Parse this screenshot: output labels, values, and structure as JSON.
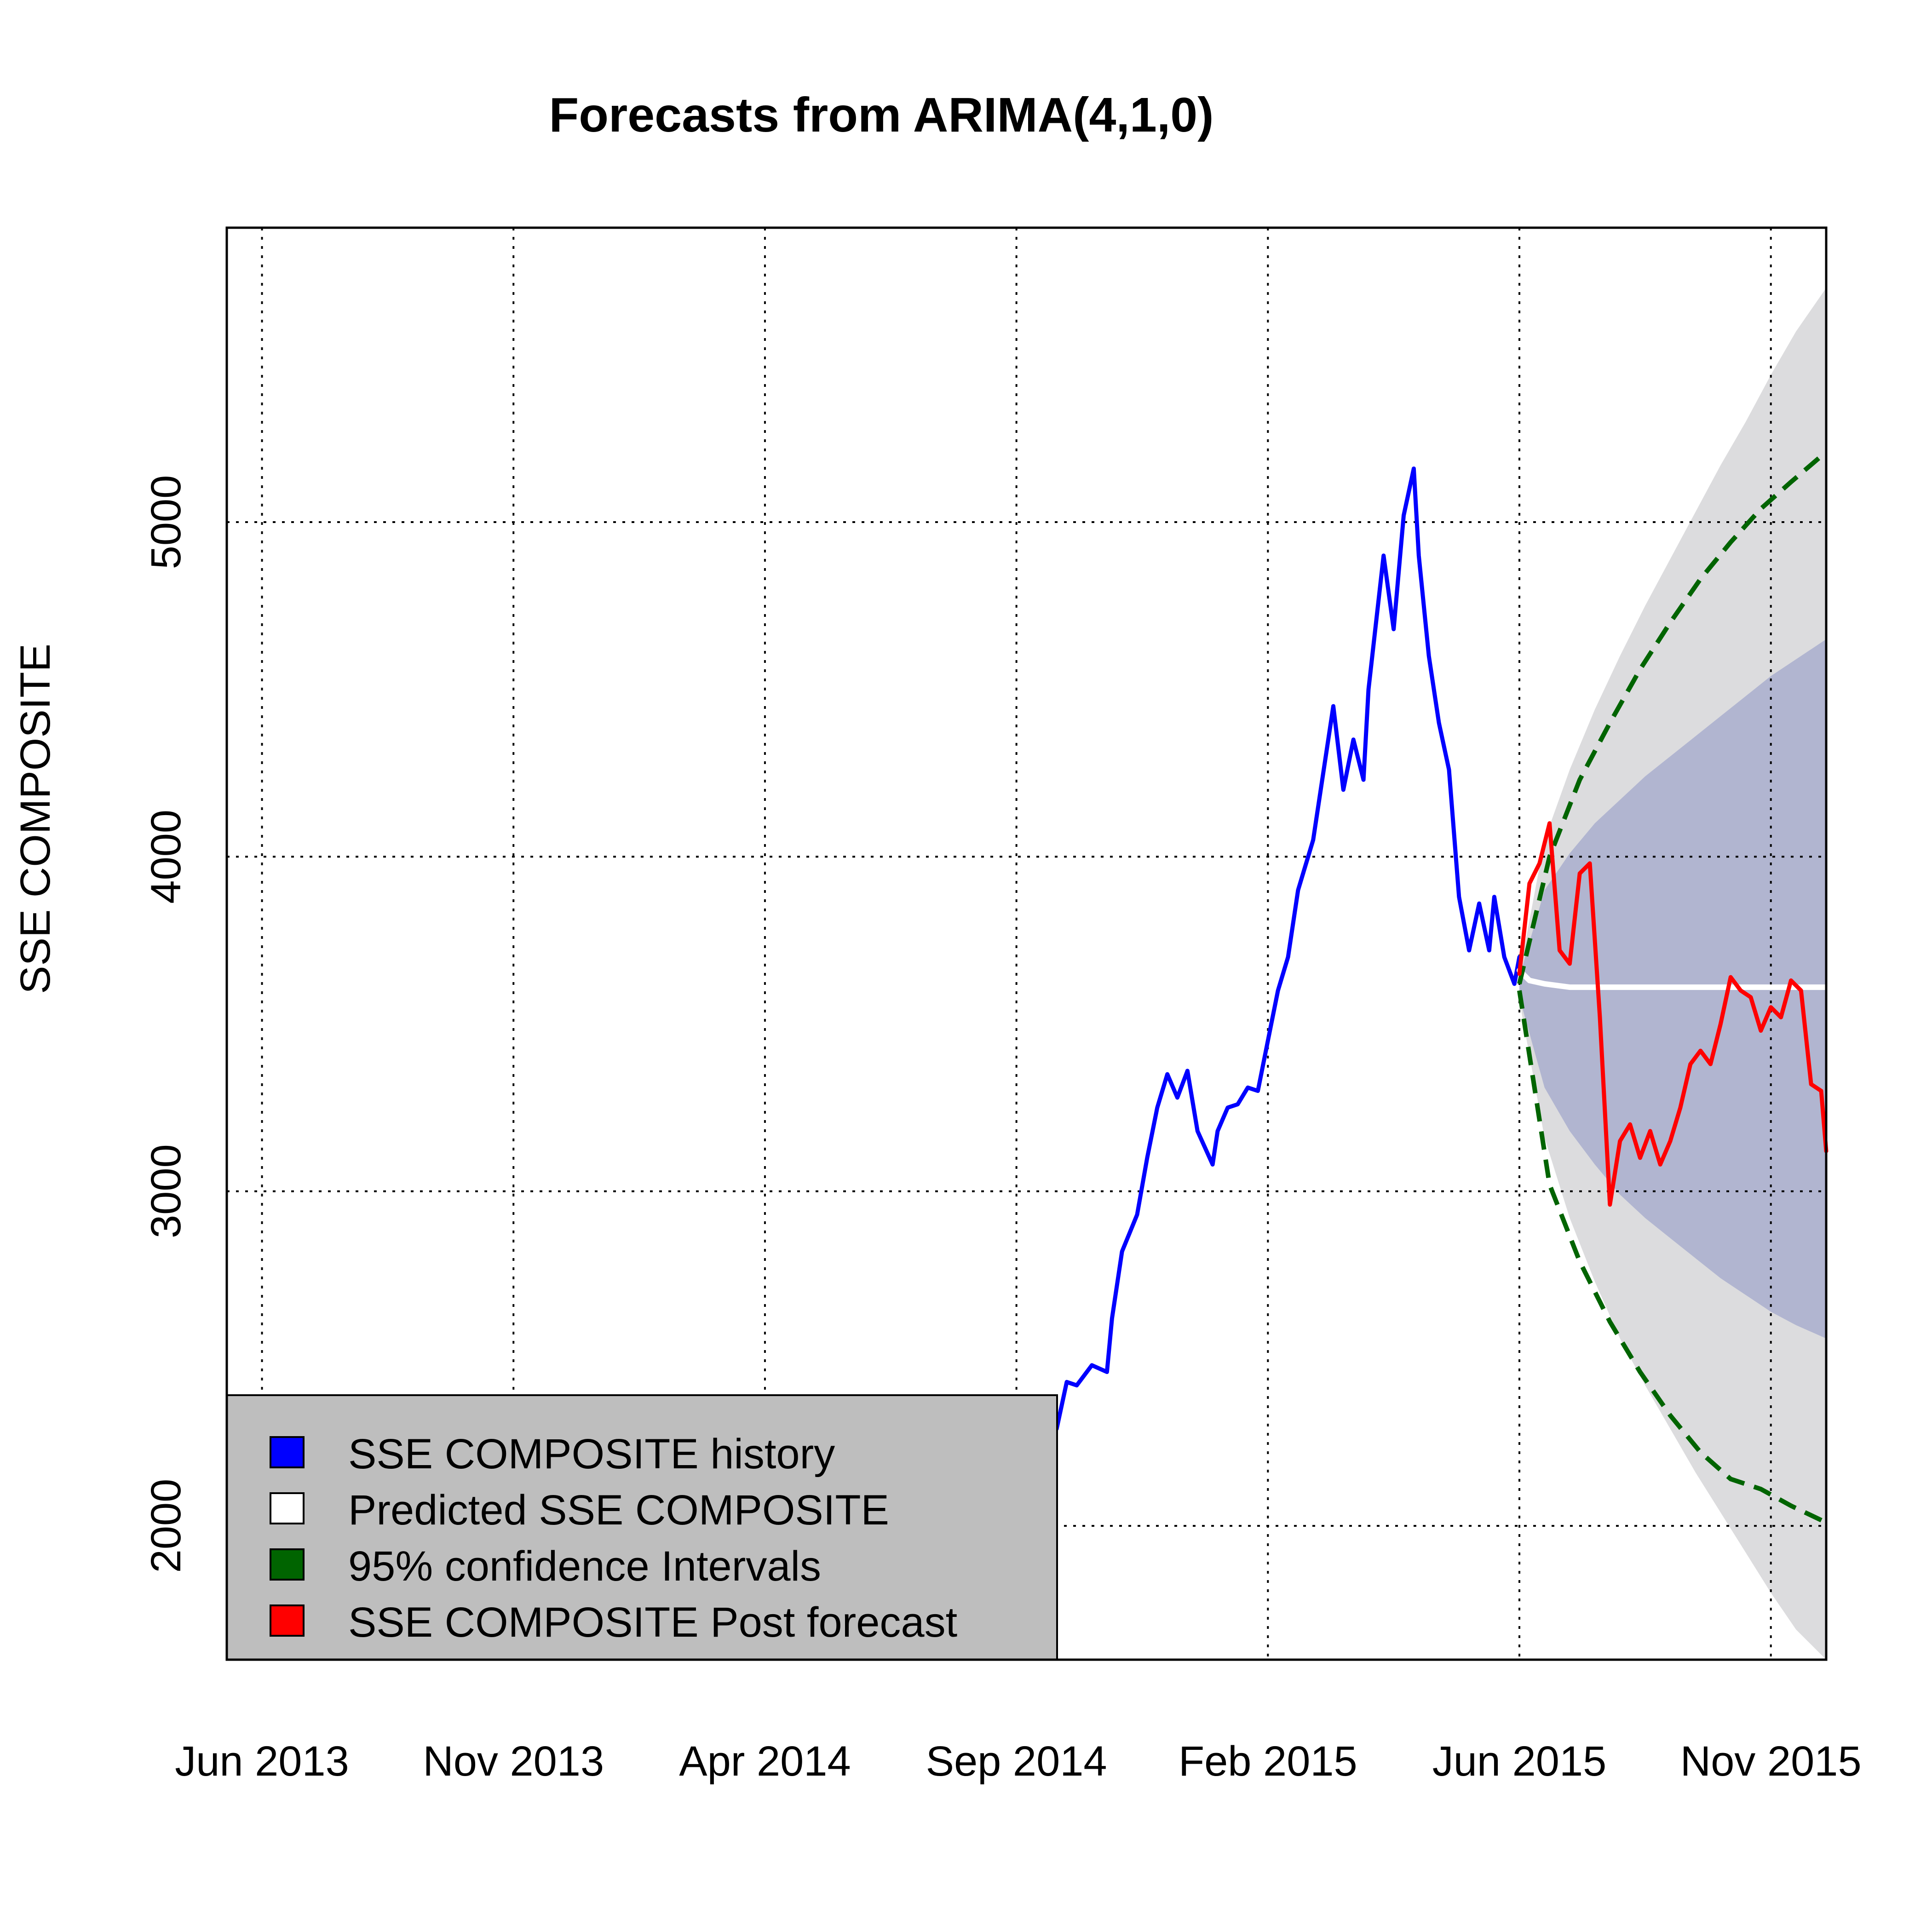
{
  "chart_data": {
    "type": "line",
    "title": "Forecasts from ARIMA(4,1,0)",
    "xlabel": "",
    "ylabel": "SSE COMPOSITE",
    "x_unit": "months since Jan 2013",
    "xlim": [
      4.3,
      36.1
    ],
    "ylim": [
      1600,
      5880
    ],
    "grid": true,
    "x_ticks": [
      {
        "value": 5,
        "label": "Jun 2013"
      },
      {
        "value": 10,
        "label": "Nov 2013"
      },
      {
        "value": 15,
        "label": "Apr 2014"
      },
      {
        "value": 20,
        "label": "Sep 2014"
      },
      {
        "value": 25,
        "label": "Feb 2015"
      },
      {
        "value": 30,
        "label": "Jun 2015"
      },
      {
        "value": 35,
        "label": "Nov 2015"
      }
    ],
    "y_ticks": [
      {
        "value": 2000,
        "label": "2000"
      },
      {
        "value": 3000,
        "label": "3000"
      },
      {
        "value": 4000,
        "label": "4000"
      },
      {
        "value": 5000,
        "label": "5000"
      }
    ],
    "series": [
      {
        "name": "SSE COMPOSITE  history",
        "color": "#0000ff",
        "x": [
          20.8,
          21.0,
          21.2,
          21.5,
          21.8,
          21.9,
          22.1,
          22.4,
          22.6,
          22.8,
          23.0,
          23.2,
          23.4,
          23.6,
          23.9,
          24.0,
          24.2,
          24.4,
          24.6,
          24.8,
          25.0,
          25.2,
          25.4,
          25.6,
          25.9,
          26.1,
          26.3,
          26.5,
          26.7,
          26.9,
          27.0,
          27.3,
          27.5,
          27.7,
          27.9,
          28.0,
          28.2,
          28.4,
          28.6,
          28.8,
          29.0,
          29.2,
          29.4,
          29.5,
          29.7,
          29.9,
          30.0
        ],
        "y": [
          2290,
          2430,
          2420,
          2480,
          2460,
          2620,
          2820,
          2930,
          3100,
          3250,
          3350,
          3280,
          3360,
          3180,
          3080,
          3180,
          3250,
          3260,
          3310,
          3300,
          3450,
          3600,
          3700,
          3900,
          4050,
          4250,
          4450,
          4200,
          4350,
          4230,
          4500,
          4900,
          4680,
          5020,
          5160,
          4900,
          4600,
          4400,
          4260,
          3880,
          3720,
          3860,
          3720,
          3880,
          3700,
          3620,
          3700
        ]
      },
      {
        "name": "Predicted  SSE COMPOSITE",
        "color": "#ffffff",
        "x": [
          30.0,
          30.2,
          30.5,
          31.0,
          36.1
        ],
        "y": [
          3660,
          3630,
          3620,
          3610,
          3610
        ]
      },
      {
        "name": "95% confidence Intervals",
        "color": "#006400",
        "x": [
          30.0,
          30.6,
          31.2,
          31.8,
          32.4,
          33.0,
          33.6,
          34.2,
          34.8,
          35.4,
          36.1
        ],
        "upper": [
          3620,
          4000,
          4230,
          4400,
          4560,
          4700,
          4830,
          4940,
          5040,
          5120,
          5210
        ],
        "lower": [
          3600,
          3020,
          2790,
          2610,
          2460,
          2330,
          2220,
          2140,
          2110,
          2060,
          2010
        ]
      },
      {
        "name": "SSE COMPOSITE  Post forecast",
        "color": "#ff0000",
        "x": [
          30.0,
          30.2,
          30.4,
          30.6,
          30.8,
          31.0,
          31.2,
          31.4,
          31.6,
          31.8,
          32.0,
          32.2,
          32.4,
          32.6,
          32.8,
          33.0,
          33.2,
          33.4,
          33.6,
          33.8,
          34.0,
          34.2,
          34.4,
          34.6,
          34.8,
          35.0,
          35.2,
          35.4,
          35.6,
          35.8,
          36.0,
          36.1
        ],
        "y": [
          3650,
          3920,
          3980,
          4100,
          3720,
          3680,
          3950,
          3980,
          3520,
          2960,
          3150,
          3200,
          3100,
          3180,
          3080,
          3150,
          3250,
          3380,
          3420,
          3380,
          3500,
          3640,
          3600,
          3580,
          3480,
          3550,
          3520,
          3630,
          3600,
          3320,
          3300,
          3120
        ]
      }
    ],
    "bands": [
      {
        "name": "80% interval",
        "color": "#b1b5d0",
        "x": [
          30.0,
          30.5,
          31.0,
          31.5,
          32.0,
          32.5,
          33.0,
          33.5,
          34.0,
          34.5,
          35.0,
          35.5,
          36.1
        ],
        "upper": [
          3640,
          3900,
          4010,
          4100,
          4170,
          4240,
          4300,
          4360,
          4420,
          4480,
          4540,
          4590,
          4650
        ],
        "lower": [
          3580,
          3310,
          3180,
          3080,
          2990,
          2920,
          2860,
          2800,
          2740,
          2690,
          2640,
          2600,
          2560
        ]
      },
      {
        "name": "95% interval",
        "color": "#dcdcde",
        "x": [
          30.0,
          30.5,
          31.0,
          31.5,
          32.0,
          32.5,
          33.0,
          33.5,
          34.0,
          34.5,
          35.0,
          35.5,
          36.1
        ],
        "upper": [
          3650,
          4050,
          4260,
          4440,
          4600,
          4750,
          4890,
          5030,
          5170,
          5300,
          5440,
          5570,
          5700
        ],
        "lower": [
          3570,
          3160,
          2920,
          2730,
          2560,
          2420,
          2290,
          2160,
          2040,
          1920,
          1800,
          1690,
          1580
        ]
      }
    ],
    "legend": {
      "position": "bottom-left",
      "background": "#bebebe",
      "items": [
        {
          "label": "SSE COMPOSITE  history",
          "color": "#0000ff"
        },
        {
          "label": "Predicted  SSE COMPOSITE",
          "color": "#ffffff"
        },
        {
          "label": "95% confidence Intervals",
          "color": "#006400"
        },
        {
          "label": "SSE COMPOSITE  Post forecast",
          "color": "#ff0000"
        }
      ]
    }
  }
}
